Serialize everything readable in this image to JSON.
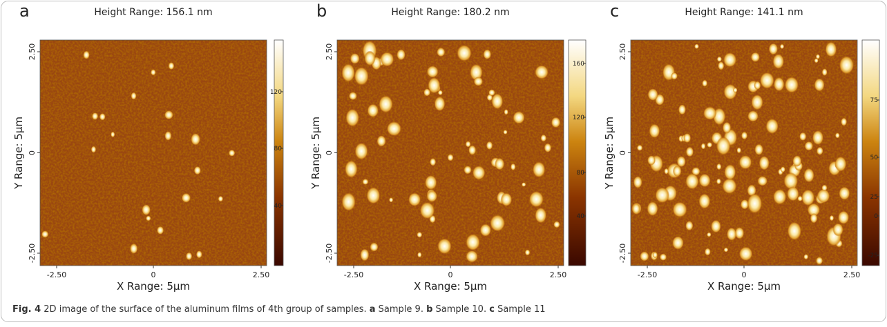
{
  "panels": [
    {
      "letter": "a",
      "title": "Height Range: 156.1 nm",
      "x_label": "X Range: 5µm",
      "y_label": "Y Range: 5µm",
      "x_ticks": [
        "-2.50",
        "0",
        "2.50"
      ],
      "y_ticks": [
        "2.50",
        "0",
        "-2.50"
      ],
      "colorbar_ticks": [
        "120",
        "80",
        "40"
      ]
    },
    {
      "letter": "b",
      "title": "Height Range: 180.2 nm",
      "x_label": "X Range: 5µm",
      "y_label": "Y Range: 5µm",
      "x_ticks": [
        "-2.50",
        "0",
        "2.50"
      ],
      "y_ticks": [
        "2.50",
        "0",
        "-2.50"
      ],
      "colorbar_ticks": [
        "160",
        "120",
        "80",
        "40"
      ]
    },
    {
      "letter": "c",
      "title": "Height Range: 141.1 nm",
      "x_label": "X Range: 5µm",
      "y_label": "Y Range: 5µm",
      "x_ticks": [
        "-2.50",
        "0",
        "2.50"
      ],
      "y_ticks": [
        "2.50",
        "0",
        "-2.50"
      ],
      "colorbar_ticks": [
        "75",
        "50",
        "25",
        "0",
        "-25"
      ]
    }
  ],
  "caption": {
    "label": "Fig. 4",
    "text": " 2D image of the surface of the aluminum films of 4th group of samples. ",
    "parts": [
      {
        "letter": "a",
        "text": " Sample 9. "
      },
      {
        "letter": "b",
        "text": " Sample 10. "
      },
      {
        "letter": "c",
        "text": " Sample 11"
      }
    ]
  }
}
